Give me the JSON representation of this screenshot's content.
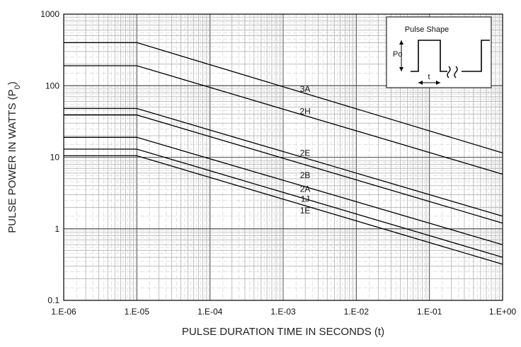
{
  "chart_data": {
    "type": "line",
    "title": "",
    "xlabel": "PULSE DURATION TIME IN SECONDS (t)",
    "ylabel_main": "PULSE POWER IN WATTS (P",
    "ylabel_sub": "0",
    "ylabel_close": ")",
    "x_scale": "log",
    "y_scale": "log",
    "xlim": [
      1e-06,
      1
    ],
    "ylim": [
      0.1,
      1000
    ],
    "grid": true,
    "x_tick_values": [
      1e-06,
      1e-05,
      0.0001,
      0.001,
      0.01,
      0.1,
      1
    ],
    "x_tick_labels": [
      "1.E-06",
      "1.E-05",
      "1.E-04",
      "1.E-03",
      "1.E-02",
      "1.E-01",
      "1.E+00"
    ],
    "y_tick_values": [
      0.1,
      1,
      10,
      100,
      1000
    ],
    "y_tick_labels": [
      "0.1",
      "1",
      "10",
      "100",
      "1000"
    ],
    "series": [
      {
        "name": "3A",
        "x": [
          1e-06,
          1e-05,
          1
        ],
        "y": [
          400,
          400,
          11.5
        ],
        "label_at": [
          0.002,
          90
        ]
      },
      {
        "name": "2H",
        "x": [
          1e-06,
          1e-05,
          1
        ],
        "y": [
          190,
          190,
          5.8
        ],
        "label_at": [
          0.002,
          44
        ]
      },
      {
        "name": "2E",
        "x": [
          1e-06,
          1e-05,
          1
        ],
        "y": [
          48,
          48,
          1.5
        ],
        "label_at": [
          0.002,
          11.5
        ]
      },
      {
        "name": "2B",
        "x": [
          1e-06,
          1e-05,
          1
        ],
        "y": [
          39,
          39,
          1.2
        ],
        "label_at": [
          0.002,
          5.6
        ]
      },
      {
        "name": "2A",
        "x": [
          1e-06,
          1e-05,
          1
        ],
        "y": [
          19,
          19,
          0.6
        ],
        "label_at": [
          0.002,
          3.6
        ]
      },
      {
        "name": "1J",
        "x": [
          1e-06,
          1e-05,
          1
        ],
        "y": [
          13,
          13,
          0.4
        ],
        "label_at": [
          0.002,
          2.6
        ]
      },
      {
        "name": "1E",
        "x": [
          1e-06,
          1e-05,
          1
        ],
        "y": [
          10.5,
          10.5,
          0.32
        ],
        "label_at": [
          0.002,
          1.8
        ]
      }
    ],
    "inset": {
      "title": "Pulse Shape",
      "amplitude_label": "Po",
      "width_label": "t"
    }
  }
}
